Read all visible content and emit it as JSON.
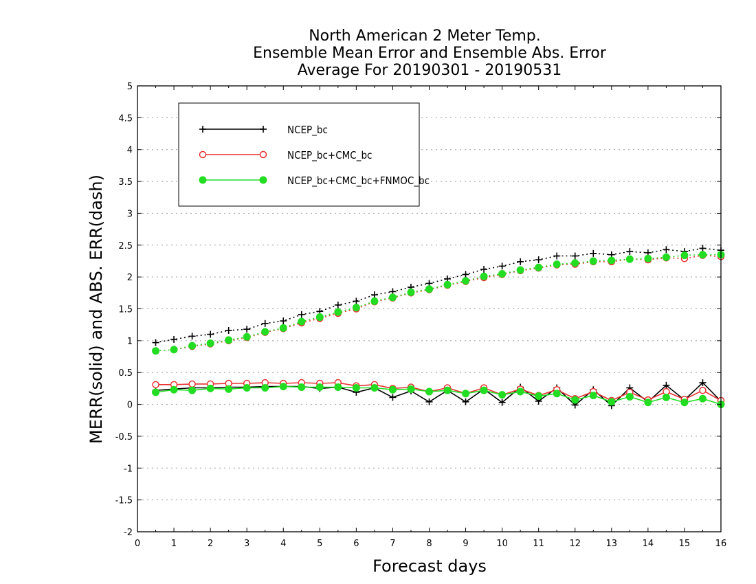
{
  "chart_data": {
    "type": "line",
    "title": [
      "North American 2 Meter Temp.",
      "Ensemble Mean Error and Ensemble Abs. Error",
      "Average For 20190301 - 20190531"
    ],
    "xlabel": "Forecast days",
    "ylabel": "MERR(solid) and ABS. ERR(dash)",
    "xlim": [
      0,
      16
    ],
    "ylim": [
      -2,
      5
    ],
    "xticks": [
      "0",
      "1",
      "2",
      "3",
      "4",
      "5",
      "6",
      "7",
      "8",
      "9",
      "10",
      "11",
      "12",
      "13",
      "14",
      "15",
      "16"
    ],
    "yticks": [
      "-2",
      "-1.5",
      "-1",
      "-0.5",
      "0",
      "0.5",
      "1",
      "1.5",
      "2",
      "2.5",
      "3",
      "3.5",
      "4",
      "4.5",
      "5"
    ],
    "grid": "horizontal-dotted",
    "legend_position": "top-left",
    "x": [
      0.5,
      1,
      1.5,
      2,
      2.5,
      3,
      3.5,
      4,
      4.5,
      5,
      5.5,
      6,
      6.5,
      7,
      7.5,
      8,
      8.5,
      9,
      9.5,
      10,
      10.5,
      11,
      11.5,
      12,
      12.5,
      13,
      13.5,
      14,
      14.5,
      15,
      15.5,
      16
    ],
    "series": [
      {
        "name": "NCEP_bc",
        "color": "#000000",
        "marker": "plus",
        "merr": [
          0.22,
          0.24,
          0.26,
          0.26,
          0.27,
          0.27,
          0.28,
          0.28,
          0.28,
          0.25,
          0.27,
          0.19,
          0.26,
          0.11,
          0.21,
          0.04,
          0.22,
          0.04,
          0.24,
          0.03,
          0.27,
          0.05,
          0.26,
          -0.01,
          0.23,
          -0.02,
          0.26,
          0.04,
          0.3,
          0.07,
          0.34,
          0.05
        ],
        "abs_err": [
          0.97,
          1.02,
          1.07,
          1.1,
          1.16,
          1.18,
          1.27,
          1.31,
          1.41,
          1.46,
          1.56,
          1.62,
          1.72,
          1.77,
          1.84,
          1.9,
          1.97,
          2.04,
          2.12,
          2.17,
          2.24,
          2.27,
          2.33,
          2.33,
          2.37,
          2.35,
          2.4,
          2.38,
          2.43,
          2.4,
          2.45,
          2.42
        ]
      },
      {
        "name": "NCEP_bc+CMC_bc",
        "color": "#e83030",
        "marker": "open-circle",
        "merr": [
          0.31,
          0.31,
          0.32,
          0.32,
          0.33,
          0.33,
          0.34,
          0.33,
          0.34,
          0.33,
          0.34,
          0.29,
          0.31,
          0.25,
          0.27,
          0.2,
          0.26,
          0.17,
          0.26,
          0.15,
          0.24,
          0.14,
          0.23,
          0.09,
          0.2,
          0.06,
          0.19,
          0.07,
          0.2,
          0.08,
          0.22,
          0.06
        ],
        "abs_err": [
          0.84,
          0.86,
          0.91,
          0.95,
          1.0,
          1.05,
          1.13,
          1.19,
          1.28,
          1.35,
          1.43,
          1.5,
          1.61,
          1.67,
          1.75,
          1.8,
          1.87,
          1.93,
          1.99,
          2.04,
          2.1,
          2.14,
          2.19,
          2.2,
          2.24,
          2.24,
          2.28,
          2.27,
          2.3,
          2.29,
          2.34,
          2.32
        ]
      },
      {
        "name": "NCEP_bc+CMC_bc+FNMOC_bc",
        "color": "#22dd22",
        "marker": "filled-circle",
        "merr": [
          0.19,
          0.23,
          0.22,
          0.25,
          0.24,
          0.26,
          0.26,
          0.28,
          0.27,
          0.27,
          0.27,
          0.26,
          0.26,
          0.23,
          0.24,
          0.2,
          0.22,
          0.17,
          0.22,
          0.15,
          0.2,
          0.13,
          0.17,
          0.07,
          0.14,
          0.04,
          0.12,
          0.03,
          0.11,
          0.03,
          0.09,
          0.0
        ],
        "abs_err": [
          0.84,
          0.86,
          0.92,
          0.96,
          1.01,
          1.06,
          1.14,
          1.2,
          1.3,
          1.37,
          1.45,
          1.52,
          1.62,
          1.68,
          1.76,
          1.81,
          1.88,
          1.94,
          2.01,
          2.05,
          2.11,
          2.15,
          2.2,
          2.22,
          2.25,
          2.26,
          2.28,
          2.29,
          2.31,
          2.34,
          2.35,
          2.35
        ]
      }
    ]
  }
}
